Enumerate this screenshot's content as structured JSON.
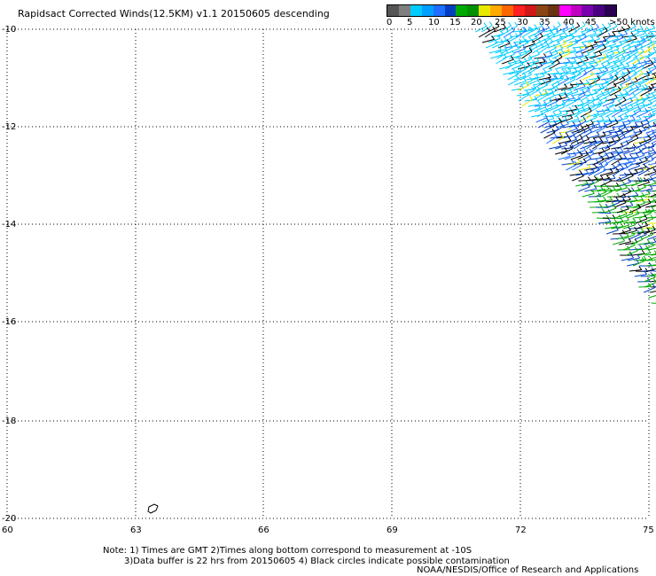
{
  "title": "Rapidsact Corrected Winds(12.5KM) v1.1 20150605 descending",
  "colorbar": {
    "colors": [
      "#555555",
      "#7f7f7f",
      "#00ccff",
      "#00a0ff",
      "#1e6fff",
      "#0040c0",
      "#00aa00",
      "#009000",
      "#e8e800",
      "#ffaa00",
      "#ff6600",
      "#ff2020",
      "#d01818",
      "#8b4513",
      "#6b3410",
      "#ff00ff",
      "#c000c0",
      "#7a00b0",
      "#4b0082",
      "#2a0050"
    ],
    "labels": [
      "0",
      "5",
      "10",
      "15",
      "20",
      "25",
      "30",
      "35",
      "40",
      "45",
      ">50 knots"
    ]
  },
  "lat_labels": [
    "-10",
    "-12",
    "-14",
    "-16",
    "-18",
    "-20"
  ],
  "lon_labels": [
    "60",
    "63",
    "66",
    "69",
    "72",
    "75"
  ],
  "notes": [
    "Note: 1) Times are GMT 2)Times along bottom correspond to measurement at -10S",
    "3)Data buffer is 22 hrs from 20150605 4) Black circles indicate possible contamination"
  ],
  "credit": "NOAA/NESDIS/Office of Research and Applications",
  "wind_colors": [
    "#00ccff",
    "#1e6fff",
    "#0040c0",
    "#00aa00",
    "#000000",
    "#e8e800"
  ]
}
